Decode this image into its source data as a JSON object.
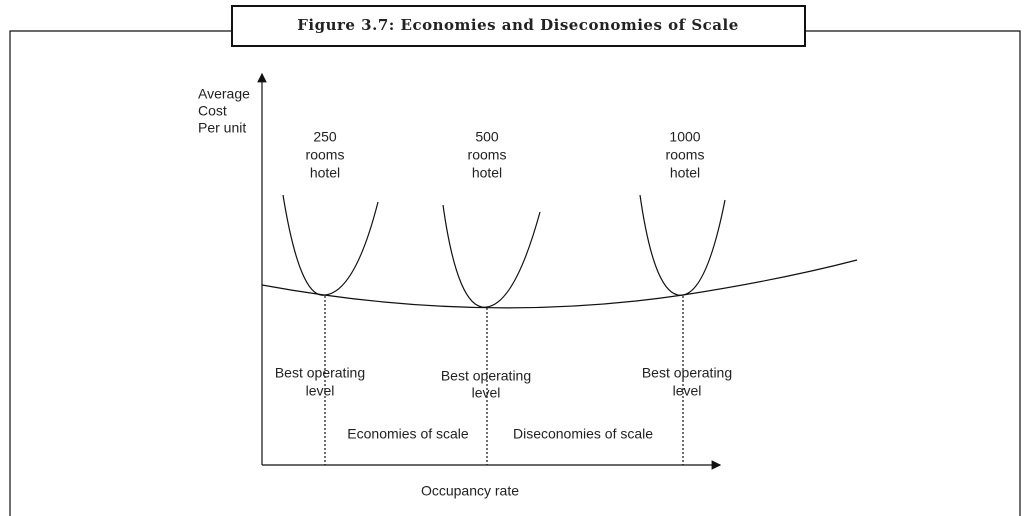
{
  "title": "Figure 3.7: Economies and Diseconomies of Scale",
  "y_axis_label": [
    "Average",
    "Cost",
    "Per unit"
  ],
  "x_axis_label": "Occupancy rate",
  "curves": [
    {
      "label": [
        "250",
        "rooms",
        "hotel"
      ],
      "point_label": [
        "Best operating",
        "level"
      ]
    },
    {
      "label": [
        "500",
        "rooms",
        "hotel"
      ],
      "point_label": [
        "Best operating",
        "level"
      ]
    },
    {
      "label": [
        "1000",
        "rooms",
        "hotel"
      ],
      "point_label": [
        "Best operating",
        "level"
      ]
    }
  ],
  "regions": [
    "Economies of scale",
    "Diseconomies of scale"
  ]
}
